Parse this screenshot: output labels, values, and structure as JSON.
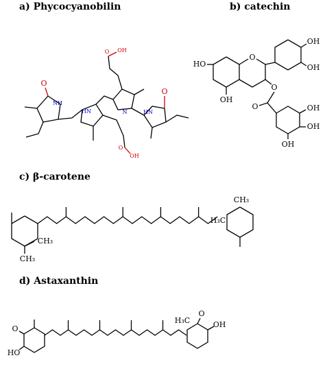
{
  "panels": [
    {
      "title": "a) Phycocyanobilin",
      "atoms": [
        "O",
        "NH",
        "HN",
        "N",
        "HN",
        "O",
        "O",
        "OH",
        "O",
        "OH"
      ]
    },
    {
      "title": "b) catechin",
      "atoms": [
        "HO",
        "O",
        "OH",
        "OH",
        "OH",
        "O",
        "O",
        "OH",
        "OH",
        "OH"
      ]
    },
    {
      "title": "c) β-carotene",
      "atoms": [
        "CH₃",
        "CH₃",
        "H₃C",
        "CH₃"
      ]
    },
    {
      "title": "d) Astaxanthin",
      "atoms": [
        "O",
        "HO",
        "O",
        "OH",
        "H₃C"
      ]
    }
  ]
}
